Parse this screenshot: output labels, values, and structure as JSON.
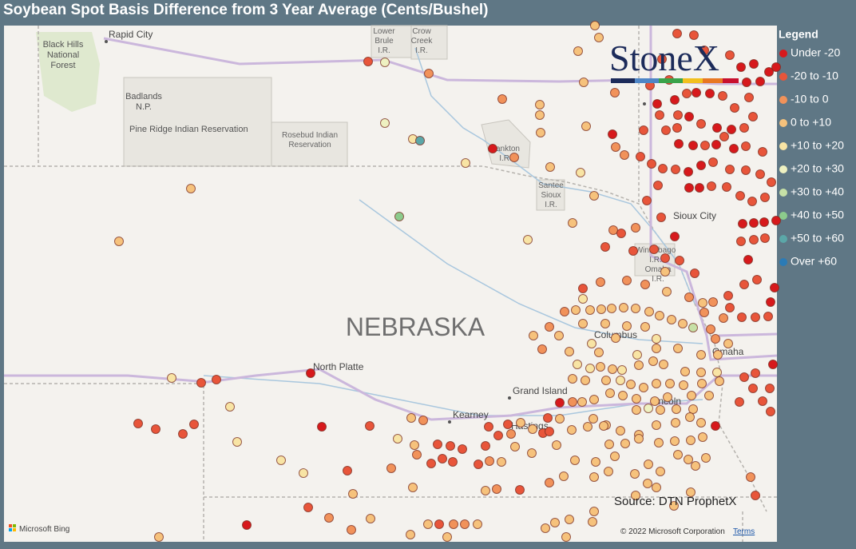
{
  "title": "Soybean Spot Basis Difference from 3 Year Average (Cents/Bushel)",
  "legend": {
    "title": "Legend",
    "items": [
      {
        "label": "Under -20",
        "color": "#d7191c"
      },
      {
        "label": "-20 to -10",
        "color": "#e8553a"
      },
      {
        "label": "-10 to 0",
        "color": "#f1925a"
      },
      {
        "label": "0 to +10",
        "color": "#f6c27c"
      },
      {
        "label": "+10 to +20",
        "color": "#f8e4a4"
      },
      {
        "label": "+20 to +30",
        "color": "#eef1c1"
      },
      {
        "label": "+30 to +40",
        "color": "#c6e0a6"
      },
      {
        "label": "+40 to +50",
        "color": "#8ccb8c"
      },
      {
        "label": "+50 to +60",
        "color": "#5ba7a8"
      },
      {
        "label": "Over +60",
        "color": "#2b7bb6"
      }
    ]
  },
  "logo": "StoneX",
  "map_labels": {
    "rapid_city": "Rapid City",
    "black_hills": [
      "Black Hills",
      "National",
      "Forest"
    ],
    "lower_brule": [
      "Lower",
      "Brule",
      "I.R."
    ],
    "crow_creek": [
      "Crow",
      "Creek",
      "I.R."
    ],
    "badlands": [
      "Badlands",
      "N.P."
    ],
    "pine_ridge": "Pine Ridge Indian Reservation",
    "rosebud": [
      "Rosebud Indian",
      "Reservation"
    ],
    "yankton": [
      "Yankton",
      "I.R."
    ],
    "santee": [
      "Santee",
      "Sioux",
      "I.R."
    ],
    "sioux_city": "Sioux City",
    "winnebago": [
      "Winnebago",
      "I.R."
    ],
    "omaha_ir": [
      "Omaha",
      "I.R."
    ],
    "state": "NEBRASKA",
    "columbus": "Columbus",
    "omaha": "Omaha",
    "north_platte": "North Platte",
    "grand_island": "Grand Island",
    "kearney": "Kearney",
    "hastings": "Hastings",
    "lincoln": "Lincoln"
  },
  "source": "Source: DTN ProphetX",
  "bing": "Microsoft Bing",
  "copyright": "© 2022 Microsoft Corporation",
  "terms": "Terms"
}
